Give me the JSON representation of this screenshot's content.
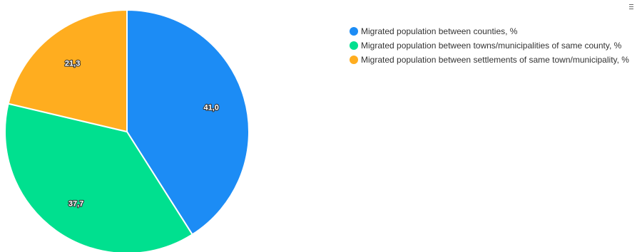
{
  "chart_data": {
    "type": "pie",
    "title": "",
    "start_angle_deg": 0,
    "series": [
      {
        "slices": [
          {
            "name": "Migrated population between counties, %",
            "value": 41.0,
            "label": "41,0",
            "color": "#1c8cf5"
          },
          {
            "name": "Migrated population between towns/municipalities of same county, %",
            "value": 37.7,
            "label": "37,7",
            "color": "#00e08f"
          },
          {
            "name": "Migrated population between settlements of same town/municipality, %",
            "value": 21.3,
            "label": "21,3",
            "color": "#ffad1f"
          }
        ]
      }
    ],
    "legend_position": "top-right"
  },
  "menu": {
    "icon": "hamburger-menu-icon"
  }
}
